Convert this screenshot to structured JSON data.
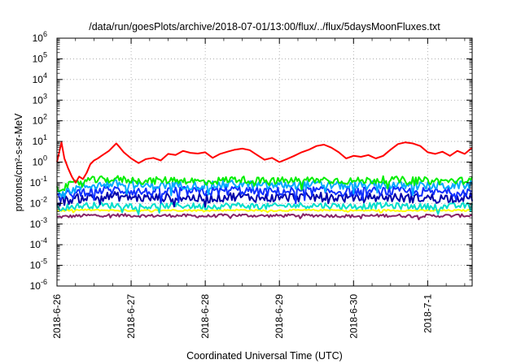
{
  "chart_data": {
    "type": "line",
    "title": "/data/run/goesPlots/archive/2018-07-01/13:00/flux/../flux/5daysMoonFluxes.txt",
    "xlabel": "Coordinated Universal Time (UTC)",
    "ylabel": "protons/cm²-s-sr-MeV",
    "yscale": "log",
    "ylim": [
      1e-06,
      1000000.0
    ],
    "xlim_days": [
      0,
      5.6
    ],
    "x_tick_labels": [
      "2018-6-26",
      "2018-6-27",
      "2018-6-28",
      "2018-6-29",
      "2018-6-30",
      "2018-7-1"
    ],
    "y_tick_labels": [
      {
        "base": "10",
        "exp": "-6"
      },
      {
        "base": "10",
        "exp": "-5"
      },
      {
        "base": "10",
        "exp": "-4"
      },
      {
        "base": "10",
        "exp": "-3"
      },
      {
        "base": "10",
        "exp": "-2"
      },
      {
        "base": "10",
        "exp": "-1"
      },
      {
        "base": "10",
        "exp": "0"
      },
      {
        "base": "10",
        "exp": "1"
      },
      {
        "base": "10",
        "exp": "2"
      },
      {
        "base": "10",
        "exp": "3"
      },
      {
        "base": "10",
        "exp": "4"
      },
      {
        "base": "10",
        "exp": "5"
      },
      {
        "base": "10",
        "exp": "6"
      }
    ],
    "grid": true,
    "series": [
      {
        "color": "#ff0000",
        "x": [
          0,
          0.06,
          0.1,
          0.15,
          0.2,
          0.25,
          0.3,
          0.35,
          0.4,
          0.45,
          0.5,
          0.55,
          0.6,
          0.7,
          0.8,
          0.85,
          0.9,
          1.0,
          1.1,
          1.2,
          1.3,
          1.4,
          1.5,
          1.6,
          1.7,
          1.8,
          1.9,
          2.0,
          2.1,
          2.2,
          2.3,
          2.4,
          2.5,
          2.6,
          2.7,
          2.8,
          2.9,
          3.0,
          3.1,
          3.2,
          3.3,
          3.4,
          3.5,
          3.6,
          3.7,
          3.8,
          3.9,
          4.0,
          4.1,
          4.2,
          4.3,
          4.4,
          4.5,
          4.6,
          4.7,
          4.8,
          4.9,
          5.0,
          5.1,
          5.2,
          5.3,
          5.4,
          5.5,
          5.6
        ],
        "y": [
          1.0,
          9.0,
          1.5,
          0.5,
          0.2,
          0.1,
          0.2,
          0.15,
          0.3,
          0.8,
          1.2,
          1.5,
          2.0,
          3.5,
          8.0,
          5.0,
          3.0,
          1.5,
          0.9,
          1.4,
          1.6,
          1.2,
          2.5,
          2.2,
          3.5,
          2.8,
          2.6,
          3.0,
          1.6,
          2.5,
          3.2,
          4.0,
          4.5,
          3.8,
          2.2,
          1.3,
          1.6,
          1.0,
          1.4,
          2.0,
          3.0,
          4.0,
          6.0,
          7.0,
          5.0,
          3.0,
          1.5,
          2.0,
          1.8,
          2.2,
          1.5,
          2.0,
          4.0,
          7.5,
          9.0,
          8.0,
          6.0,
          3.0,
          2.5,
          3.2,
          2.0,
          3.5,
          2.5,
          5.0
        ]
      },
      {
        "color": "#00ee00",
        "x": [
          0,
          0.4,
          0.8,
          1.2,
          1.6,
          2.0,
          2.4,
          2.8,
          3.2,
          3.6,
          4.0,
          4.4,
          4.8,
          5.2,
          5.6
        ],
        "y": [
          0.05,
          0.13,
          0.15,
          0.12,
          0.14,
          0.11,
          0.15,
          0.12,
          0.13,
          0.14,
          0.12,
          0.14,
          0.13,
          0.12,
          0.13
        ],
        "noise": 0.35
      },
      {
        "color": "#00aaff",
        "x": [
          0,
          0.4,
          0.8,
          1.2,
          1.6,
          2.0,
          2.4,
          2.8,
          3.2,
          3.6,
          4.0,
          4.4,
          4.8,
          5.2,
          5.6
        ],
        "y": [
          0.03,
          0.07,
          0.09,
          0.07,
          0.08,
          0.07,
          0.09,
          0.07,
          0.08,
          0.08,
          0.07,
          0.08,
          0.07,
          0.07,
          0.08
        ],
        "noise": 0.4
      },
      {
        "color": "#1030ff",
        "x": [
          0,
          0.4,
          0.8,
          1.2,
          1.6,
          2.0,
          2.4,
          2.8,
          3.2,
          3.6,
          4.0,
          4.4,
          4.8,
          5.2,
          5.6
        ],
        "y": [
          0.02,
          0.04,
          0.045,
          0.035,
          0.04,
          0.035,
          0.045,
          0.035,
          0.04,
          0.04,
          0.035,
          0.04,
          0.035,
          0.035,
          0.04
        ],
        "noise": 0.45
      },
      {
        "color": "#0000aa",
        "x": [
          0,
          0.4,
          0.8,
          1.2,
          1.6,
          2.0,
          2.4,
          2.8,
          3.2,
          3.6,
          4.0,
          4.4,
          4.8,
          5.2,
          5.6
        ],
        "y": [
          0.012,
          0.02,
          0.022,
          0.018,
          0.02,
          0.017,
          0.022,
          0.018,
          0.02,
          0.02,
          0.018,
          0.02,
          0.018,
          0.018,
          0.02
        ],
        "noise": 0.45
      },
      {
        "color": "#00ddcc",
        "x": [
          0,
          0.4,
          0.8,
          1.2,
          1.6,
          2.0,
          2.4,
          2.8,
          3.2,
          3.6,
          4.0,
          4.4,
          4.8,
          5.2,
          5.6
        ],
        "y": [
          0.006,
          0.008,
          0.008,
          0.007,
          0.008,
          0.007,
          0.008,
          0.007,
          0.008,
          0.008,
          0.007,
          0.008,
          0.007,
          0.007,
          0.008
        ],
        "noise": 0.3
      },
      {
        "color": "#ffff00",
        "x": [
          0,
          0.4,
          0.8,
          1.2,
          1.6,
          2.0,
          2.4,
          2.8,
          3.2,
          3.6,
          4.0,
          4.4,
          4.8,
          5.2,
          5.6
        ],
        "y": [
          0.0045,
          0.0048,
          0.0046,
          0.0045,
          0.0047,
          0.0045,
          0.0048,
          0.0045,
          0.0046,
          0.0047,
          0.0045,
          0.0046,
          0.0045,
          0.0045,
          0.0046
        ],
        "noise": 0.08
      },
      {
        "color": "#882266",
        "x": [
          0,
          0.4,
          0.8,
          1.2,
          1.6,
          2.0,
          2.4,
          2.8,
          3.2,
          3.6,
          4.0,
          4.4,
          4.8,
          5.2,
          5.6
        ],
        "y": [
          0.0022,
          0.0026,
          0.0027,
          0.0025,
          0.0026,
          0.0024,
          0.0027,
          0.0025,
          0.0026,
          0.0026,
          0.0024,
          0.0026,
          0.0025,
          0.0025,
          0.0026
        ],
        "noise": 0.15
      }
    ]
  }
}
